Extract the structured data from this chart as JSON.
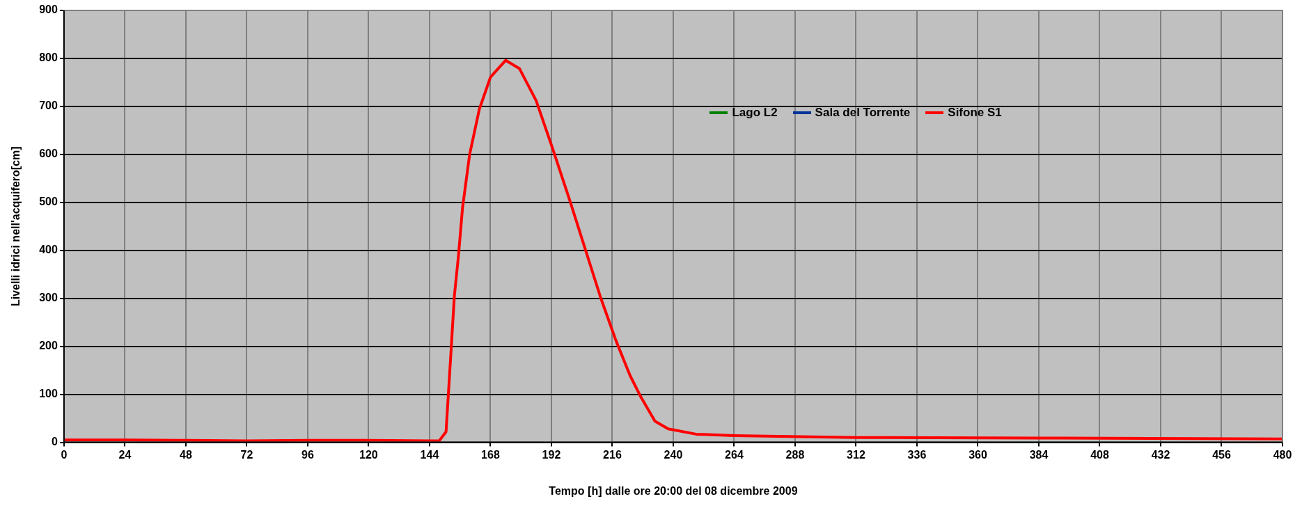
{
  "chart_data": {
    "type": "line",
    "xlabel": "Tempo [h] dalle ore 20:00 del 08 dicembre 2009",
    "ylabel": "Livelli idrici nell'acquifero[cm]",
    "xlim": [
      0,
      480
    ],
    "xticks": [
      0,
      24,
      48,
      72,
      96,
      120,
      144,
      168,
      192,
      216,
      240,
      264,
      288,
      312,
      336,
      360,
      384,
      408,
      432,
      456,
      480
    ],
    "ylim": [
      0,
      900
    ],
    "yticks": [
      0,
      100,
      200,
      300,
      400,
      500,
      600,
      700,
      800,
      900
    ],
    "grid": true,
    "legend": "top right",
    "marker": "none",
    "line_style": "solid",
    "x": [
      0,
      24,
      48,
      72,
      96,
      120,
      144,
      147.8,
      150.5,
      152.2,
      153.8,
      155.4,
      157,
      159.8,
      163.6,
      168,
      174,
      179.4,
      186,
      192.5,
      199.5,
      205.5,
      211.5,
      217.5,
      223,
      227.3,
      232.8,
      238,
      249,
      264,
      312,
      384,
      480
    ],
    "series": [
      {
        "name": "Lago L2",
        "color": "#008000",
        "values": [
          null,
          null,
          null,
          null,
          null,
          null,
          null,
          null,
          null,
          null,
          null,
          null,
          null,
          null,
          null,
          null,
          null,
          null,
          null,
          null,
          null,
          null,
          null,
          null,
          null,
          null,
          null,
          null,
          null,
          null,
          null,
          null,
          null
        ]
      },
      {
        "name": "Sala del Torrente",
        "color": "#003399",
        "values": [
          null,
          null,
          null,
          null,
          null,
          null,
          null,
          null,
          null,
          null,
          null,
          null,
          null,
          null,
          null,
          null,
          null,
          null,
          null,
          null,
          null,
          null,
          null,
          null,
          null,
          null,
          null,
          null,
          null,
          null,
          null,
          null,
          null
        ]
      },
      {
        "name": "Sifone S1",
        "color": "#ff0000",
        "values": [
          5,
          5,
          4,
          3,
          4,
          4,
          3,
          3,
          22,
          167,
          306,
          389,
          489,
          600,
          694,
          761,
          796,
          779,
          712,
          612,
          500,
          400,
          300,
          211,
          139,
          94,
          44,
          28,
          17,
          14,
          10,
          9,
          7
        ]
      }
    ]
  }
}
